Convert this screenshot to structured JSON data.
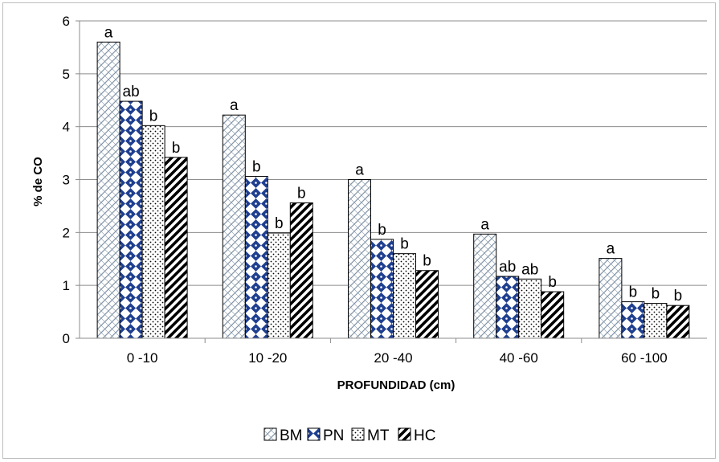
{
  "chart_data": {
    "type": "bar",
    "title": "",
    "xlabel": "PROFUNDIDAD (cm)",
    "ylabel": "% de CO",
    "ylim": [
      0,
      6
    ],
    "yticks": [
      "0",
      "1",
      "2",
      "3",
      "4",
      "5",
      "6"
    ],
    "grid": true,
    "legend_position": "bottom",
    "categories": [
      "0 -10",
      "10 -20",
      "20 -40",
      "40 -60",
      "60 -100"
    ],
    "series": [
      {
        "name": "BM",
        "values": [
          5.6,
          4.22,
          3.0,
          1.97,
          1.51
        ],
        "letters": [
          "a",
          "a",
          "a",
          "a",
          "a"
        ],
        "pattern": "diagonal-hatch",
        "color": "#8395a8"
      },
      {
        "name": "PN",
        "values": [
          4.48,
          3.06,
          1.87,
          1.17,
          0.69
        ],
        "letters": [
          "ab",
          "b",
          "b",
          "ab",
          "b"
        ],
        "pattern": "blue-diamonds",
        "color": "#1f3f8f"
      },
      {
        "name": "MT",
        "values": [
          4.02,
          1.99,
          1.6,
          1.12,
          0.66
        ],
        "letters": [
          "b",
          "b",
          "b",
          "ab",
          "b"
        ],
        "pattern": "dots",
        "color": "#000000"
      },
      {
        "name": "HC",
        "values": [
          3.42,
          2.56,
          1.28,
          0.88,
          0.62
        ],
        "letters": [
          "b",
          "b",
          "b",
          "b",
          "b"
        ],
        "pattern": "thick-diagonal",
        "color": "#000000"
      }
    ]
  }
}
